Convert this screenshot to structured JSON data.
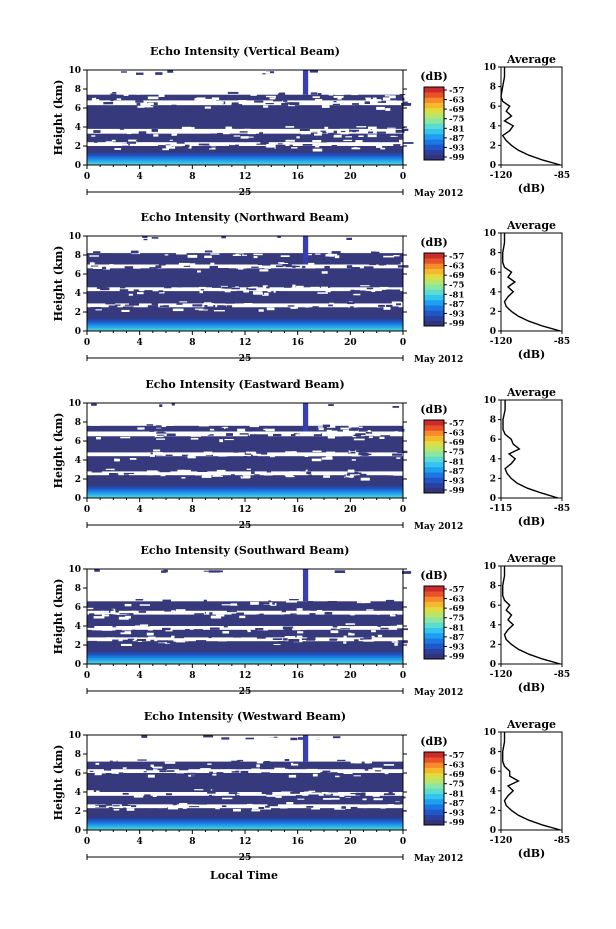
{
  "figure": {
    "xlabel": "Local Time",
    "date_label": "May 2012",
    "day_label": "25"
  },
  "colors": {
    "dark_echo": "#363a7d",
    "colorbar": [
      "#32347a",
      "#2b3f9e",
      "#1f57c8",
      "#1b78e3",
      "#1f9ff0",
      "#33c4ef",
      "#5cdcd1",
      "#8ae6a0",
      "#b8e66c",
      "#dedc3f",
      "#f5b92e",
      "#f78a2a",
      "#e8522a",
      "#cc2b2b"
    ]
  },
  "colorbar": {
    "unit_label": "(dB)",
    "ticks": [
      "-57",
      "-63",
      "-69",
      "-75",
      "-81",
      "-87",
      "-93",
      "-99"
    ]
  },
  "avg_panel": {
    "title": "Average",
    "xlabel": "(dB)"
  },
  "chart_data": [
    {
      "type": "heatmap",
      "title": "Echo Intensity (Vertical Beam)",
      "ylabel": "Height (km)",
      "xticks": [
        "0",
        "4",
        "8",
        "12",
        "16",
        "20",
        "0"
      ],
      "yticks": [
        "0",
        "2",
        "4",
        "6",
        "8",
        "10"
      ],
      "xlim": [
        0,
        24
      ],
      "ylim": [
        0,
        10
      ],
      "gaps": [
        [
          0,
          24,
          2.0,
          2.4
        ],
        [
          0,
          24,
          3.3,
          3.8
        ],
        [
          0,
          24,
          6.3,
          6.8
        ],
        [
          0,
          24,
          7.4,
          10
        ]
      ],
      "spike": [
        16.4,
        16.8,
        7.4,
        10
      ],
      "avg": {
        "xlim": [
          -120,
          -85
        ],
        "xticks": [
          "-120",
          "-85"
        ],
        "h": [
          0,
          0.5,
          1,
          1.5,
          2,
          2.5,
          3,
          3.5,
          4,
          4.5,
          5,
          5.5,
          6,
          6.5,
          7,
          8,
          9,
          10
        ],
        "v": [
          -86,
          -96,
          -104,
          -110,
          -114,
          -117,
          -119,
          -115,
          -113,
          -118,
          -114,
          -117,
          -115,
          -119,
          -120,
          -119,
          -118,
          -118
        ]
      }
    },
    {
      "type": "heatmap",
      "title": "Echo Intensity (Northward Beam)",
      "ylabel": "Height (km)",
      "xticks": [
        "0",
        "4",
        "8",
        "12",
        "16",
        "20",
        "0"
      ],
      "yticks": [
        "0",
        "2",
        "4",
        "6",
        "8",
        "10"
      ],
      "xlim": [
        0,
        24
      ],
      "ylim": [
        0,
        10
      ],
      "gaps": [
        [
          0,
          24,
          2.5,
          2.9
        ],
        [
          0,
          24,
          4.2,
          4.6
        ],
        [
          0,
          24,
          6.6,
          7.0
        ],
        [
          0,
          24,
          8.2,
          10
        ]
      ],
      "spike": [
        16.4,
        16.8,
        7.0,
        10
      ],
      "avg": {
        "xlim": [
          -120,
          -85
        ],
        "xticks": [
          "-120",
          "-85"
        ],
        "h": [
          0,
          0.5,
          1,
          1.5,
          2,
          2.5,
          3,
          3.5,
          4,
          4.5,
          5,
          5.5,
          6,
          6.5,
          7,
          8,
          9,
          10
        ],
        "v": [
          -86,
          -96,
          -104,
          -110,
          -114,
          -117,
          -118,
          -116,
          -113,
          -116,
          -112,
          -116,
          -114,
          -118,
          -119,
          -119,
          -118,
          -118
        ]
      }
    },
    {
      "type": "heatmap",
      "title": "Echo Intensity (Eastward Beam)",
      "ylabel": "Height (km)",
      "xticks": [
        "0",
        "4",
        "8",
        "12",
        "16",
        "20",
        "0"
      ],
      "yticks": [
        "0",
        "2",
        "4",
        "6",
        "8",
        "10"
      ],
      "xlim": [
        0,
        24
      ],
      "ylim": [
        0,
        10
      ],
      "gaps": [
        [
          0,
          24,
          2.4,
          2.8
        ],
        [
          0,
          24,
          4.4,
          4.8
        ],
        [
          0,
          24,
          6.5,
          7.0
        ],
        [
          0,
          24,
          7.6,
          10
        ]
      ],
      "spike": [
        16.4,
        16.8,
        7.0,
        10
      ],
      "avg": {
        "xlim": [
          -115,
          -85
        ],
        "xticks": [
          "-115",
          "-85"
        ],
        "h": [
          0,
          0.5,
          1,
          1.5,
          2,
          2.5,
          3,
          3.5,
          4,
          4.5,
          5,
          5.5,
          6,
          6.5,
          7,
          8,
          9,
          10
        ],
        "v": [
          -87,
          -95,
          -102,
          -107,
          -110,
          -112,
          -113,
          -110,
          -108,
          -111,
          -106,
          -109,
          -110,
          -113,
          -114,
          -114,
          -113,
          -113
        ]
      }
    },
    {
      "type": "heatmap",
      "title": "Echo Intensity (Southward Beam)",
      "ylabel": "Height (km)",
      "xticks": [
        "0",
        "4",
        "8",
        "12",
        "16",
        "20",
        "0"
      ],
      "yticks": [
        "0",
        "2",
        "4",
        "6",
        "8",
        "10"
      ],
      "xlim": [
        0,
        24
      ],
      "ylim": [
        0,
        10
      ],
      "gaps": [
        [
          0,
          24,
          2.4,
          2.8
        ],
        [
          0,
          24,
          3.6,
          4.0
        ],
        [
          0,
          24,
          5.2,
          5.6
        ],
        [
          0,
          24,
          6.6,
          10
        ]
      ],
      "spike": [
        16.4,
        16.8,
        6.6,
        10
      ],
      "avg": {
        "xlim": [
          -120,
          -85
        ],
        "xticks": [
          "-120",
          "-85"
        ],
        "h": [
          0,
          0.5,
          1,
          1.5,
          2,
          2.5,
          3,
          3.5,
          4,
          4.5,
          5,
          5.5,
          6,
          6.5,
          7,
          8,
          9,
          10
        ],
        "v": [
          -86,
          -96,
          -104,
          -110,
          -114,
          -117,
          -118,
          -116,
          -113,
          -116,
          -114,
          -117,
          -115,
          -118,
          -119,
          -119,
          -118,
          -118
        ]
      }
    },
    {
      "type": "heatmap",
      "title": "Echo Intensity (Westward Beam)",
      "ylabel": "Height (km)",
      "xticks": [
        "0",
        "4",
        "8",
        "12",
        "16",
        "20",
        "0"
      ],
      "yticks": [
        "0",
        "2",
        "4",
        "6",
        "8",
        "10"
      ],
      "xlim": [
        0,
        24
      ],
      "ylim": [
        0,
        10
      ],
      "gaps": [
        [
          0,
          24,
          2.3,
          2.7
        ],
        [
          0,
          24,
          3.6,
          4.0
        ],
        [
          0,
          24,
          6.0,
          6.4
        ],
        [
          0,
          24,
          7.2,
          10
        ]
      ],
      "spike": [
        16.4,
        16.8,
        7.2,
        10
      ],
      "avg": {
        "xlim": [
          -120,
          -85
        ],
        "xticks": [
          "-120",
          "-85"
        ],
        "h": [
          0,
          0.5,
          1,
          1.5,
          2,
          2.5,
          3,
          3.5,
          4,
          4.5,
          5,
          5.5,
          6,
          6.5,
          7,
          8,
          9,
          10
        ],
        "v": [
          -86,
          -96,
          -104,
          -110,
          -114,
          -117,
          -118,
          -116,
          -113,
          -116,
          -110,
          -115,
          -115,
          -118,
          -119,
          -119,
          -118,
          -118
        ]
      }
    }
  ]
}
